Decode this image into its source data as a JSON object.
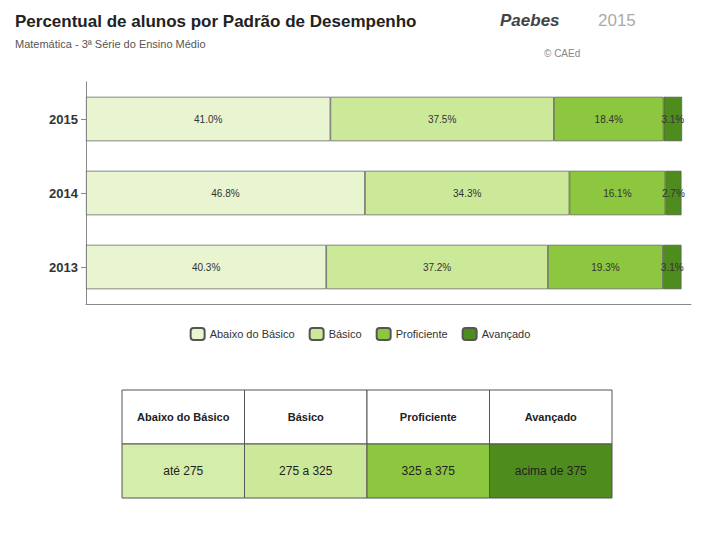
{
  "chart_data": {
    "type": "bar",
    "orientation": "horizontal",
    "stacked": true,
    "title": "Percentual de alunos por Padrão de Desempenho",
    "subtitle": "Matemática - 3ª Série do Ensino Médio",
    "annotations": [
      {
        "text": "Paebes"
      },
      {
        "text": "2015"
      },
      {
        "text": "© CAEd"
      }
    ],
    "categories": [
      "2015",
      "2014",
      "2013"
    ],
    "series": [
      {
        "name": "Abaixo do Básico",
        "color": "#e8f5d0",
        "values": [
          41.0,
          46.8,
          40.3
        ],
        "value_labels": [
          "41.0%",
          "46.8%",
          "40.3%"
        ]
      },
      {
        "name": "Básico",
        "color": "#cce99a",
        "values": [
          37.5,
          34.3,
          37.2
        ],
        "value_labels": [
          "37.5%",
          "34.3%",
          "37.2%"
        ]
      },
      {
        "name": "Proficiente",
        "color": "#8dc63f",
        "values": [
          18.4,
          16.1,
          19.3
        ],
        "value_labels": [
          "18.4%",
          "16.1%",
          "19.3%"
        ]
      },
      {
        "name": "Avançado",
        "color": "#4e8c1e",
        "values": [
          3.1,
          2.7,
          3.1
        ],
        "value_labels": [
          "3.1%",
          "2.7%",
          "3.1%"
        ]
      }
    ],
    "xlim": [
      0,
      101.5
    ],
    "tick_labels": "y",
    "data_labels": true,
    "grid": false,
    "legend": "bottom",
    "table": {
      "headers": [
        "Abaixo do Básico",
        "Básico",
        "Proficiente",
        "Avançado"
      ],
      "values": [
        "até 275",
        "275 a 325",
        "325 a 375",
        "acima de 375"
      ],
      "header_color": "#ffffff",
      "colors": [
        "#d4edaa",
        "#cce99a",
        "#8dc63f",
        "#4e8c1e"
      ]
    }
  }
}
